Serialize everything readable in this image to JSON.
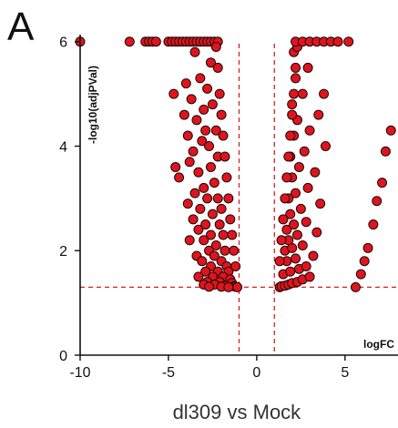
{
  "panel_label": "A",
  "chart_data": {
    "type": "scatter",
    "title": "",
    "xlabel": "dl309 vs Mock",
    "x_axis_label": "logFC",
    "ylabel": "-log10(adjPVal)",
    "xlim": [
      -10,
      8
    ],
    "ylim": [
      0,
      6.1
    ],
    "x_ticks": [
      -10,
      -5,
      0,
      5
    ],
    "y_ticks": [
      0,
      2,
      4,
      6
    ],
    "x_tick_labels": [
      "-10",
      "-5",
      "0",
      "5"
    ],
    "y_tick_labels": [
      "0",
      "2",
      "4",
      "6"
    ],
    "grid": false,
    "legend": "none",
    "thresholds": {
      "logFC": [
        -1,
        1
      ],
      "neg_log10_adjpval": 1.3,
      "line_style": "dashed",
      "line_color": "#d62020"
    },
    "point_style": {
      "fill": "#e0141e",
      "stroke": "#1a0a0a"
    },
    "series": [
      {
        "points": [
          [
            -10.0,
            6.0
          ],
          [
            -7.2,
            6.0
          ],
          [
            -6.3,
            6.0
          ],
          [
            -6.1,
            6.0
          ],
          [
            -5.9,
            6.0
          ],
          [
            -5.7,
            6.0
          ],
          [
            -5.0,
            6.0
          ],
          [
            -4.8,
            6.0
          ],
          [
            -4.6,
            6.0
          ],
          [
            -4.4,
            6.0
          ],
          [
            -4.2,
            6.0
          ],
          [
            -4.0,
            6.0
          ],
          [
            -3.8,
            6.0
          ],
          [
            -3.6,
            6.0
          ],
          [
            -3.4,
            6.0
          ],
          [
            -3.2,
            6.0
          ],
          [
            -3.0,
            6.0
          ],
          [
            -2.8,
            6.0
          ],
          [
            -2.6,
            6.0
          ],
          [
            -2.4,
            6.0
          ],
          [
            -2.2,
            6.0
          ],
          [
            -3.5,
            5.8
          ],
          [
            -2.6,
            5.6
          ],
          [
            -3.2,
            5.3
          ],
          [
            -4.0,
            5.2
          ],
          [
            -2.8,
            5.1
          ],
          [
            -4.7,
            5.0
          ],
          [
            -3.7,
            4.9
          ],
          [
            -2.5,
            4.8
          ],
          [
            -3.0,
            4.7
          ],
          [
            -4.1,
            4.6
          ],
          [
            -3.4,
            4.5
          ],
          [
            -2.3,
            4.3
          ],
          [
            -2.9,
            4.3
          ],
          [
            -3.9,
            4.2
          ],
          [
            -3.1,
            4.1
          ],
          [
            -2.7,
            4.0
          ],
          [
            -3.6,
            3.9
          ],
          [
            -2.2,
            3.8
          ],
          [
            -3.8,
            3.7
          ],
          [
            -4.6,
            3.6
          ],
          [
            -2.6,
            3.6
          ],
          [
            -3.3,
            3.5
          ],
          [
            -4.4,
            3.4
          ],
          [
            -2.4,
            3.3
          ],
          [
            -3.0,
            3.2
          ],
          [
            -3.5,
            3.1
          ],
          [
            -2.2,
            3.0
          ],
          [
            -2.8,
            3.0
          ],
          [
            -3.9,
            2.9
          ],
          [
            -3.2,
            2.8
          ],
          [
            -2.0,
            2.8
          ],
          [
            -2.5,
            2.7
          ],
          [
            -3.6,
            2.6
          ],
          [
            -2.9,
            2.5
          ],
          [
            -2.1,
            2.5
          ],
          [
            -3.3,
            2.4
          ],
          [
            -2.6,
            2.3
          ],
          [
            -1.9,
            2.3
          ],
          [
            -3.8,
            2.2
          ],
          [
            -3.0,
            2.2
          ],
          [
            -2.3,
            2.1
          ],
          [
            -2.7,
            2.0
          ],
          [
            -1.8,
            2.0
          ],
          [
            -3.4,
            1.9
          ],
          [
            -2.4,
            1.9
          ],
          [
            -2.0,
            1.8
          ],
          [
            -3.1,
            1.8
          ],
          [
            -1.7,
            1.7
          ],
          [
            -2.6,
            1.7
          ],
          [
            -2.9,
            1.6
          ],
          [
            -2.2,
            1.6
          ],
          [
            -1.6,
            1.6
          ],
          [
            -3.3,
            1.5
          ],
          [
            -2.5,
            1.5
          ],
          [
            -1.9,
            1.5
          ],
          [
            -1.5,
            1.45
          ],
          [
            -2.8,
            1.4
          ],
          [
            -2.1,
            1.4
          ],
          [
            -1.4,
            1.38
          ],
          [
            -3.0,
            1.35
          ],
          [
            -2.4,
            1.35
          ],
          [
            -1.8,
            1.33
          ],
          [
            -1.3,
            1.32
          ],
          [
            -2.7,
            1.31
          ],
          [
            -2.0,
            1.31
          ],
          [
            -1.2,
            1.31
          ],
          [
            -1.6,
            1.3
          ],
          [
            -1.1,
            1.3
          ],
          [
            -2.3,
            5.9
          ],
          [
            -2.2,
            5.5
          ],
          [
            -2.1,
            5.0
          ],
          [
            -2.0,
            4.6
          ],
          [
            -1.9,
            4.2
          ],
          [
            -1.8,
            3.8
          ],
          [
            -1.7,
            3.4
          ],
          [
            -1.6,
            3.0
          ],
          [
            -1.5,
            2.6
          ],
          [
            -1.4,
            2.3
          ],
          [
            -1.3,
            2.0
          ],
          [
            -1.2,
            1.7
          ],
          [
            1.3,
            1.3
          ],
          [
            1.4,
            1.32
          ],
          [
            1.6,
            1.33
          ],
          [
            1.8,
            1.35
          ],
          [
            2.0,
            1.38
          ],
          [
            2.3,
            1.4
          ],
          [
            2.6,
            1.45
          ],
          [
            3.0,
            1.5
          ],
          [
            1.5,
            1.55
          ],
          [
            1.9,
            1.6
          ],
          [
            2.4,
            1.65
          ],
          [
            2.8,
            1.7
          ],
          [
            1.7,
            1.8
          ],
          [
            2.2,
            1.85
          ],
          [
            3.2,
            1.9
          ],
          [
            1.6,
            2.0
          ],
          [
            2.0,
            2.05
          ],
          [
            2.6,
            2.1
          ],
          [
            1.8,
            2.2
          ],
          [
            2.3,
            2.3
          ],
          [
            3.4,
            2.35
          ],
          [
            1.7,
            2.4
          ],
          [
            2.1,
            2.5
          ],
          [
            2.8,
            2.55
          ],
          [
            1.9,
            2.7
          ],
          [
            2.5,
            2.8
          ],
          [
            3.6,
            2.9
          ],
          [
            1.8,
            3.0
          ],
          [
            2.2,
            3.1
          ],
          [
            2.9,
            3.2
          ],
          [
            2.0,
            3.4
          ],
          [
            3.3,
            3.5
          ],
          [
            2.4,
            3.6
          ],
          [
            1.9,
            3.8
          ],
          [
            2.7,
            3.9
          ],
          [
            3.9,
            4.0
          ],
          [
            2.1,
            4.2
          ],
          [
            3.0,
            4.3
          ],
          [
            2.3,
            4.5
          ],
          [
            3.5,
            4.6
          ],
          [
            2.0,
            4.8
          ],
          [
            2.6,
            5.0
          ],
          [
            3.8,
            5.0
          ],
          [
            2.2,
            5.3
          ],
          [
            2.9,
            5.5
          ],
          [
            2.1,
            5.8
          ],
          [
            1.3,
            1.8
          ],
          [
            1.4,
            2.2
          ],
          [
            1.5,
            2.6
          ],
          [
            1.6,
            3.0
          ],
          [
            1.7,
            3.4
          ],
          [
            1.8,
            3.8
          ],
          [
            1.9,
            4.2
          ],
          [
            2.0,
            4.6
          ],
          [
            2.1,
            5.0
          ],
          [
            2.2,
            5.5
          ],
          [
            2.3,
            5.9
          ],
          [
            2.2,
            6.0
          ],
          [
            2.6,
            6.0
          ],
          [
            3.0,
            6.0
          ],
          [
            3.4,
            6.0
          ],
          [
            3.8,
            6.0
          ],
          [
            4.2,
            6.0
          ],
          [
            4.6,
            6.0
          ],
          [
            5.2,
            6.0
          ],
          [
            5.6,
            1.3
          ],
          [
            5.9,
            1.55
          ],
          [
            6.1,
            1.8
          ],
          [
            6.3,
            2.05
          ],
          [
            6.6,
            2.5
          ],
          [
            6.8,
            2.95
          ],
          [
            7.1,
            3.3
          ],
          [
            7.3,
            3.9
          ],
          [
            7.6,
            4.3
          ]
        ]
      }
    ]
  }
}
